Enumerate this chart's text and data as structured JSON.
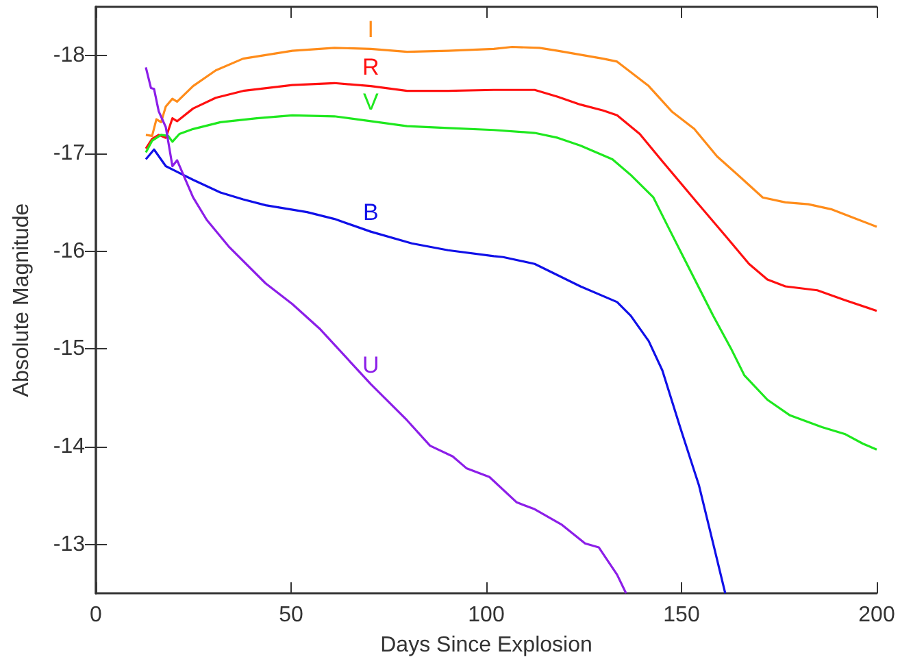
{
  "chart_data": {
    "type": "line",
    "xlabel": "Days Since Explosion",
    "ylabel": "Absolute Magnitude",
    "xlim": [
      0,
      200
    ],
    "ylim": [
      -12.5,
      -18.5
    ],
    "xticks": [
      0,
      50,
      100,
      150,
      200
    ],
    "yticks": [
      -18,
      -17,
      -16,
      -15,
      -14,
      -13
    ],
    "grid": false,
    "legend": false,
    "series": [
      {
        "name": "I",
        "color": "#ff8c1a",
        "x": [
          12.8,
          14.4,
          15.5,
          16.7,
          17.9,
          19.6,
          20.8,
          24.9,
          30.7,
          37.7,
          50.3,
          61.1,
          70.4,
          79.7,
          90.2,
          101.9,
          106.6,
          113.6,
          118.3,
          129.9,
          133.5,
          141.6,
          147.5,
          153.3,
          159.1,
          165,
          170.8,
          176.6,
          182.5,
          188.3,
          194.2,
          200
        ],
        "values": [
          -17.19,
          -17.18,
          -17.35,
          -17.32,
          -17.48,
          -17.56,
          -17.53,
          -17.69,
          -17.85,
          -17.97,
          -18.05,
          -18.08,
          -18.07,
          -18.04,
          -18.05,
          -18.07,
          -18.09,
          -18.08,
          -18.05,
          -17.97,
          -17.94,
          -17.69,
          -17.43,
          -17.25,
          -16.97,
          -16.76,
          -16.55,
          -16.5,
          -16.48,
          -16.43,
          -16.34,
          -16.25
        ]
      },
      {
        "name": "R",
        "color": "#ff1010",
        "x": [
          12.8,
          14.4,
          16.1,
          17.9,
          19.6,
          20.8,
          24.9,
          30.7,
          37.7,
          50.3,
          61.1,
          70.4,
          79.7,
          90.2,
          101.9,
          106.6,
          112.4,
          118.3,
          124.1,
          129.9,
          133.5,
          139.3,
          145.1,
          153.3,
          161.4,
          167.3,
          172,
          176.6,
          184.8,
          191.8,
          200
        ],
        "values": [
          -17.05,
          -17.15,
          -17.19,
          -17.16,
          -17.36,
          -17.33,
          -17.46,
          -17.57,
          -17.64,
          -17.7,
          -17.72,
          -17.69,
          -17.64,
          -17.64,
          -17.65,
          -17.65,
          -17.65,
          -17.58,
          -17.5,
          -17.44,
          -17.39,
          -17.2,
          -16.92,
          -16.53,
          -16.15,
          -15.87,
          -15.71,
          -15.64,
          -15.6,
          -15.5,
          -15.39
        ]
      },
      {
        "name": "V",
        "color": "#1ee81e",
        "x": [
          12.8,
          14.4,
          16.7,
          18.5,
          19.6,
          21.4,
          24.9,
          31.9,
          41.2,
          50.3,
          61.1,
          70.4,
          79.7,
          90.2,
          101.9,
          112.4,
          118.3,
          124.1,
          132.3,
          137,
          142.8,
          146.3,
          151,
          158.1,
          162.6,
          166.1,
          172,
          177.8,
          186,
          191.8,
          196.5,
          200
        ],
        "values": [
          -17.01,
          -17.13,
          -17.19,
          -17.18,
          -17.12,
          -17.2,
          -17.25,
          -17.32,
          -17.36,
          -17.39,
          -17.38,
          -17.33,
          -17.28,
          -17.26,
          -17.24,
          -17.21,
          -17.16,
          -17.08,
          -16.94,
          -16.78,
          -16.55,
          -16.27,
          -15.9,
          -15.34,
          -15.01,
          -14.73,
          -14.48,
          -14.32,
          -14.2,
          -14.13,
          -14.03,
          -13.97
        ]
      },
      {
        "name": "B",
        "color": "#1010e8",
        "x": [
          12.8,
          14.9,
          17.9,
          24.9,
          31.9,
          37.7,
          43.5,
          54.1,
          61.1,
          70.4,
          80.9,
          90.2,
          101.9,
          104.3,
          112.4,
          124.1,
          133.5,
          137,
          141.6,
          145.1,
          149.8,
          154.5,
          158.1,
          161.2
        ],
        "values": [
          -16.94,
          -17.04,
          -16.87,
          -16.73,
          -16.6,
          -16.53,
          -16.47,
          -16.4,
          -16.33,
          -16.2,
          -16.08,
          -16.01,
          -15.95,
          -15.94,
          -15.87,
          -15.64,
          -15.48,
          -15.34,
          -15.08,
          -14.78,
          -14.18,
          -13.6,
          -13.01,
          -12.5
        ]
      },
      {
        "name": "U",
        "color": "#8c1ee8",
        "x": [
          12.8,
          14.1,
          14.9,
          16.1,
          17.9,
          19.6,
          20.8,
          24.9,
          28.4,
          34.2,
          43.5,
          50.3,
          57.5,
          70.4,
          79.7,
          85.6,
          91.4,
          94.9,
          100.8,
          107.8,
          112.4,
          119.4,
          125.3,
          128.8,
          133.5,
          135.8
        ],
        "values": [
          -17.88,
          -17.67,
          -17.66,
          -17.43,
          -17.27,
          -16.87,
          -16.93,
          -16.55,
          -16.32,
          -16.04,
          -15.67,
          -15.46,
          -15.2,
          -14.64,
          -14.27,
          -14.01,
          -13.9,
          -13.78,
          -13.69,
          -13.43,
          -13.36,
          -13.2,
          -13.01,
          -12.97,
          -12.69,
          -12.5
        ]
      }
    ]
  }
}
